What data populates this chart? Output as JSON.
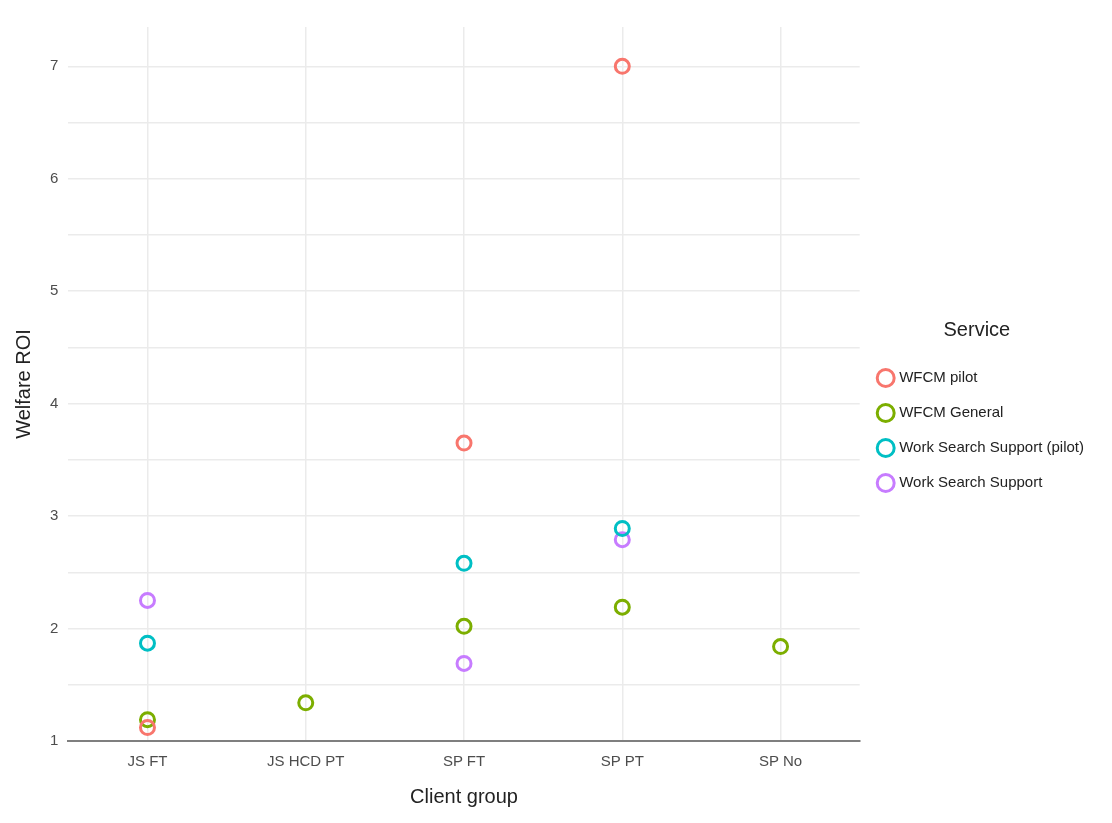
{
  "chart_data": {
    "type": "scatter",
    "xlabel": "Client group",
    "ylabel": "Welfare ROI",
    "legend_title": "Service",
    "legend": "right",
    "grid": true,
    "marker": "circle",
    "categories": [
      "JS FT",
      "JS HCD PT",
      "SP FT",
      "SP PT",
      "SP No"
    ],
    "ylim": [
      1,
      7.35
    ],
    "yticks": [
      1,
      {
        "value": 1.5,
        "label": null
      },
      2,
      {
        "value": 2.5,
        "label": null
      },
      3,
      {
        "value": 3.5,
        "label": null
      },
      4,
      {
        "value": 4.5,
        "label": null
      },
      5,
      {
        "value": 5.5,
        "label": null
      },
      6,
      {
        "value": 6.5,
        "label": null
      },
      7
    ],
    "series": [
      {
        "name": "WFCM pilot",
        "color": "#f8766d",
        "values": [
          1.12,
          null,
          3.65,
          7.0,
          null
        ]
      },
      {
        "name": "WFCM General",
        "color": "#7cae00",
        "values": [
          1.19,
          1.34,
          2.02,
          2.19,
          1.84
        ]
      },
      {
        "name": "Work Search Support (pilot)",
        "color": "#00bfc4",
        "values": [
          1.87,
          null,
          2.58,
          2.89,
          null
        ]
      },
      {
        "name": "Work Search Support",
        "color": "#c77cff",
        "values": [
          2.25,
          null,
          1.69,
          2.79,
          null
        ]
      }
    ]
  }
}
